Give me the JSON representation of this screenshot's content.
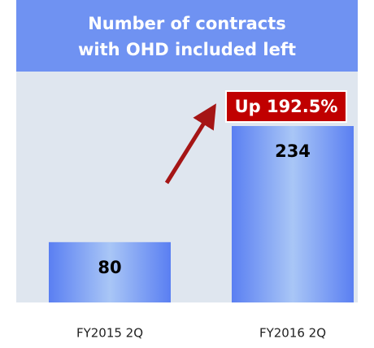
{
  "chart_data": {
    "type": "bar",
    "title": [
      "Number of contracts",
      "with OHD included left"
    ],
    "categories": [
      "FY2015 2Q",
      "FY2016 2Q"
    ],
    "values": [
      80,
      234
    ],
    "annotation": "Up 192.5%",
    "color": "#5a7ff2",
    "header_color": "#6f92f2",
    "background": "#dfe6ef",
    "annotation_color": "#c00000"
  }
}
